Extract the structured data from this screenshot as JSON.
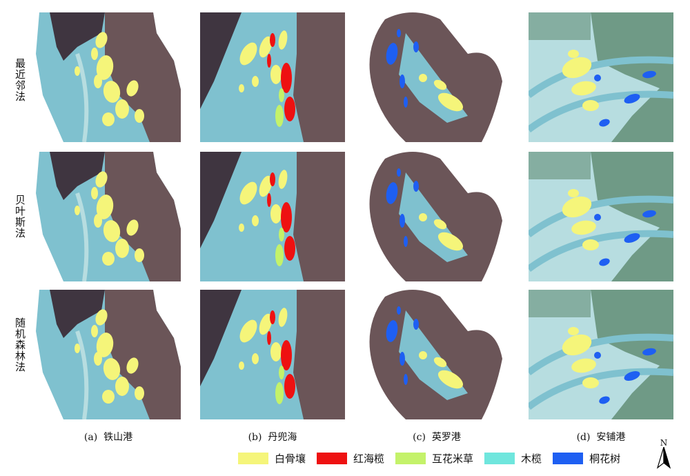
{
  "rows": [
    "最近邻法",
    "贝叶斯法",
    "随机森林法"
  ],
  "columns": [
    {
      "label": "(a)  铁山港",
      "scheme": "a"
    },
    {
      "label": "(b)  丹兜海",
      "scheme": "b"
    },
    {
      "label": "(c)  英罗港",
      "scheme": "c"
    },
    {
      "label": "(d)  安铺港",
      "scheme": "d"
    }
  ],
  "legend": [
    {
      "label": "白骨壤",
      "color": "#f5f57a"
    },
    {
      "label": "红海榄",
      "color": "#ee1111"
    },
    {
      "label": "互花米草",
      "color": "#c4f26a"
    },
    {
      "label": "木榄",
      "color": "#6fe6dd"
    },
    {
      "label": "桐花树",
      "color": "#1e5ff2"
    }
  ],
  "north_label": "N",
  "colors": {
    "water": "#7fc1cf",
    "water_light": "#b7dde0",
    "land": "#6b5558",
    "land_dark": "#3f3540",
    "field": "#6f9a86"
  }
}
